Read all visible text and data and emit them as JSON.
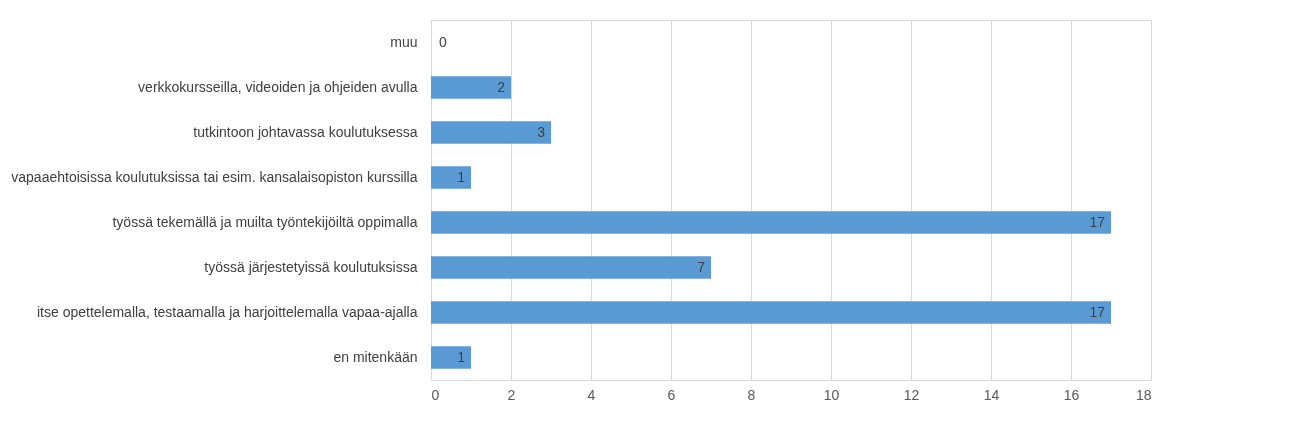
{
  "chart_data": {
    "type": "bar",
    "orientation": "horizontal",
    "categories": [
      "muu",
      "verkkokursseilla, videoiden ja ohjeiden avulla",
      "tutkintoon johtavassa koulutuksessa",
      "vapaaehtoisissa koulutuksissa tai esim. kansalaisopiston kurssilla",
      "työssä tekemällä ja muilta työntekijöiltä oppimalla",
      "työssä järjestetyissä koulutuksissa",
      "itse opettelemalla, testaamalla ja harjoittelemalla vapaa-ajalla",
      "en mitenkään"
    ],
    "values": [
      0,
      2,
      3,
      1,
      17,
      7,
      17,
      1
    ],
    "color": "#5b9bd5",
    "xlim": [
      0,
      18
    ],
    "xticks": [
      0,
      2,
      4,
      6,
      8,
      10,
      12,
      14,
      16,
      18
    ],
    "grid": "x",
    "data_labels": true
  }
}
